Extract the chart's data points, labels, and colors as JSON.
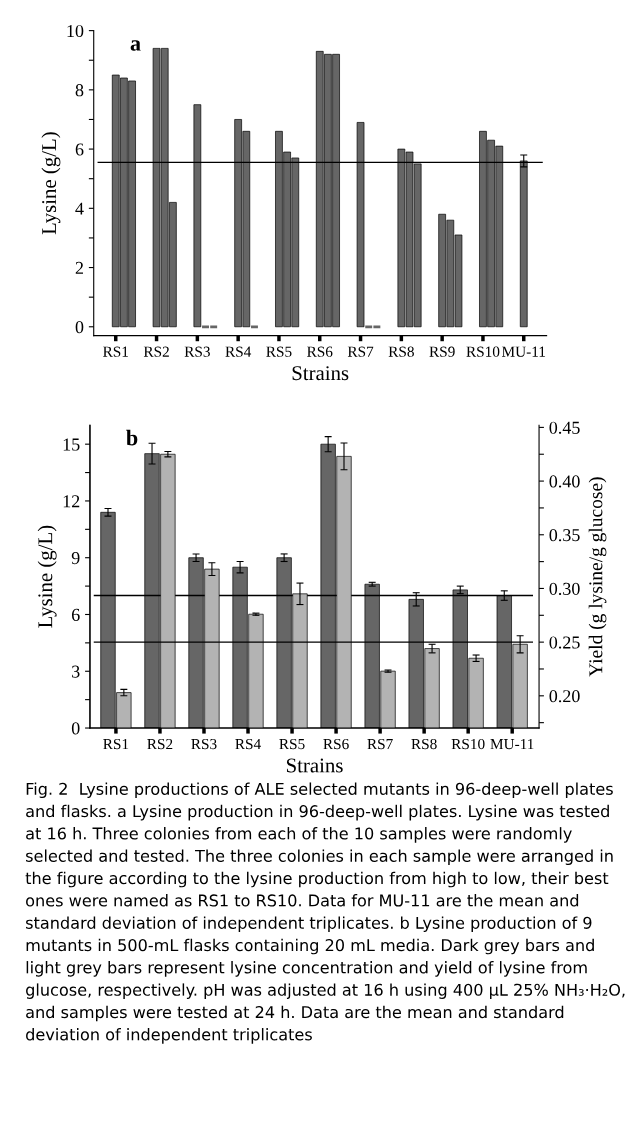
{
  "chart_data": [
    {
      "type": "bar",
      "title": "a",
      "xlabel": "Strains",
      "ylabel": "Lysine (g/L)",
      "categories": [
        "RS1",
        "RS2",
        "RS3",
        "RS4",
        "RS5",
        "RS6",
        "RS7",
        "RS8",
        "RS9",
        "RS10",
        "MU-11"
      ],
      "series": [
        {
          "color": "#666666",
          "values": [
            8.5,
            9.4,
            7.5,
            7.0,
            6.6,
            9.3,
            6.9,
            6.0,
            3.8,
            6.6,
            5.6
          ],
          "errors": [
            null,
            null,
            null,
            null,
            null,
            null,
            null,
            null,
            null,
            null,
            0.2
          ]
        },
        {
          "color": "#666666",
          "values": [
            8.4,
            9.4,
            0,
            6.6,
            5.9,
            9.2,
            0,
            5.9,
            3.6,
            6.3,
            null
          ]
        },
        {
          "color": "#666666",
          "values": [
            8.3,
            4.2,
            0,
            0,
            5.7,
            9.2,
            0,
            5.5,
            3.1,
            6.1,
            null
          ]
        }
      ],
      "ylim": [
        -0.3,
        10
      ],
      "yticks": [
        0,
        {
          "value": 1,
          "label": null
        },
        2,
        {
          "value": 3,
          "label": null
        },
        4,
        {
          "value": 5,
          "label": null
        },
        6,
        {
          "value": 7,
          "label": null
        },
        8,
        {
          "value": 9,
          "label": null
        },
        10
      ],
      "ref_lines": [
        {
          "axis": "y",
          "value": 5.55,
          "color": "#000000"
        }
      ],
      "grid": false,
      "legend": false
    },
    {
      "type": "bar",
      "title": "b",
      "xlabel": "Strains",
      "ylabel": "Lysine (g/L)",
      "y2label": "Yield (g lysine/g glucose)",
      "categories": [
        "RS1",
        "RS2",
        "RS3",
        "RS4",
        "RS5",
        "RS6",
        "RS7",
        "RS8",
        "RS10",
        "MU-11"
      ],
      "series": [
        {
          "color": "#666666",
          "axis": "y",
          "values": [
            11.4,
            14.5,
            9.0,
            8.5,
            9.0,
            15.0,
            7.6,
            6.8,
            7.3,
            7.0
          ],
          "errors": [
            0.2,
            0.55,
            0.2,
            0.3,
            0.2,
            0.4,
            0.1,
            0.35,
            0.2,
            0.25
          ]
        },
        {
          "color": "#b3b3b3",
          "axis": "y2",
          "values": [
            0.203,
            0.425,
            0.318,
            0.276,
            0.295,
            0.423,
            0.223,
            0.244,
            0.235,
            0.248
          ],
          "errors": [
            0.003,
            0.0025,
            0.006,
            0.001,
            0.01,
            0.0125,
            0.001,
            0.004,
            0.003,
            0.008
          ]
        }
      ],
      "ylim": [
        0,
        16
      ],
      "yticks": [
        0,
        {
          "value": 1.5,
          "label": null
        },
        3,
        {
          "value": 4.5,
          "label": null
        },
        6,
        {
          "value": 7.5,
          "label": null
        },
        9,
        {
          "value": 10.5,
          "label": null
        },
        12,
        {
          "value": 13.5,
          "label": null
        },
        15
      ],
      "y2lim": [
        0.17,
        0.452
      ],
      "y2ticks": [
        {
          "value": 0.175,
          "label": null
        },
        {
          "value": 0.2,
          "label": "0.20"
        },
        {
          "value": 0.225,
          "label": null
        },
        0.25,
        {
          "value": 0.275,
          "label": null
        },
        {
          "value": 0.3,
          "label": "0.30"
        },
        {
          "value": 0.325,
          "label": null
        },
        0.35,
        {
          "value": 0.375,
          "label": null
        },
        {
          "value": 0.4,
          "label": "0.40"
        },
        {
          "value": 0.425,
          "label": null
        },
        0.45
      ],
      "ref_lines": [
        {
          "axis": "y",
          "value": 7.0,
          "color": "#000000"
        },
        {
          "axis": "y2",
          "value": 0.25,
          "color": "#000000"
        }
      ],
      "annotations": [
        "Fig. 2  Lysine productions of ALE selected mutants in 96-deep-well plates and flasks. a Lysine production in 96-deep-well plates. Lysine was tested at 16 h. Three colonies from each of the 10 samples were randomly selected and tested. The three colonies in each sample were arranged in the figure according to the lysine production from high to low, their best ones were named as RS1 to RS10. Data for MU-11 are the mean and standard deviation of independent triplicates. b Lysine production of 9 mutants in 500-mL flasks containing 20 mL media. Dark grey bars and light grey bars represent lysine concentration and yield of lysine from glucose, respectively. pH was adjusted at 16 h using 400 µL 25% NH₃·H₂O, and samples were tested at 24 h. Data are the mean and standard deviation of independent triplicates"
      ],
      "grid": false,
      "legend": false
    }
  ]
}
